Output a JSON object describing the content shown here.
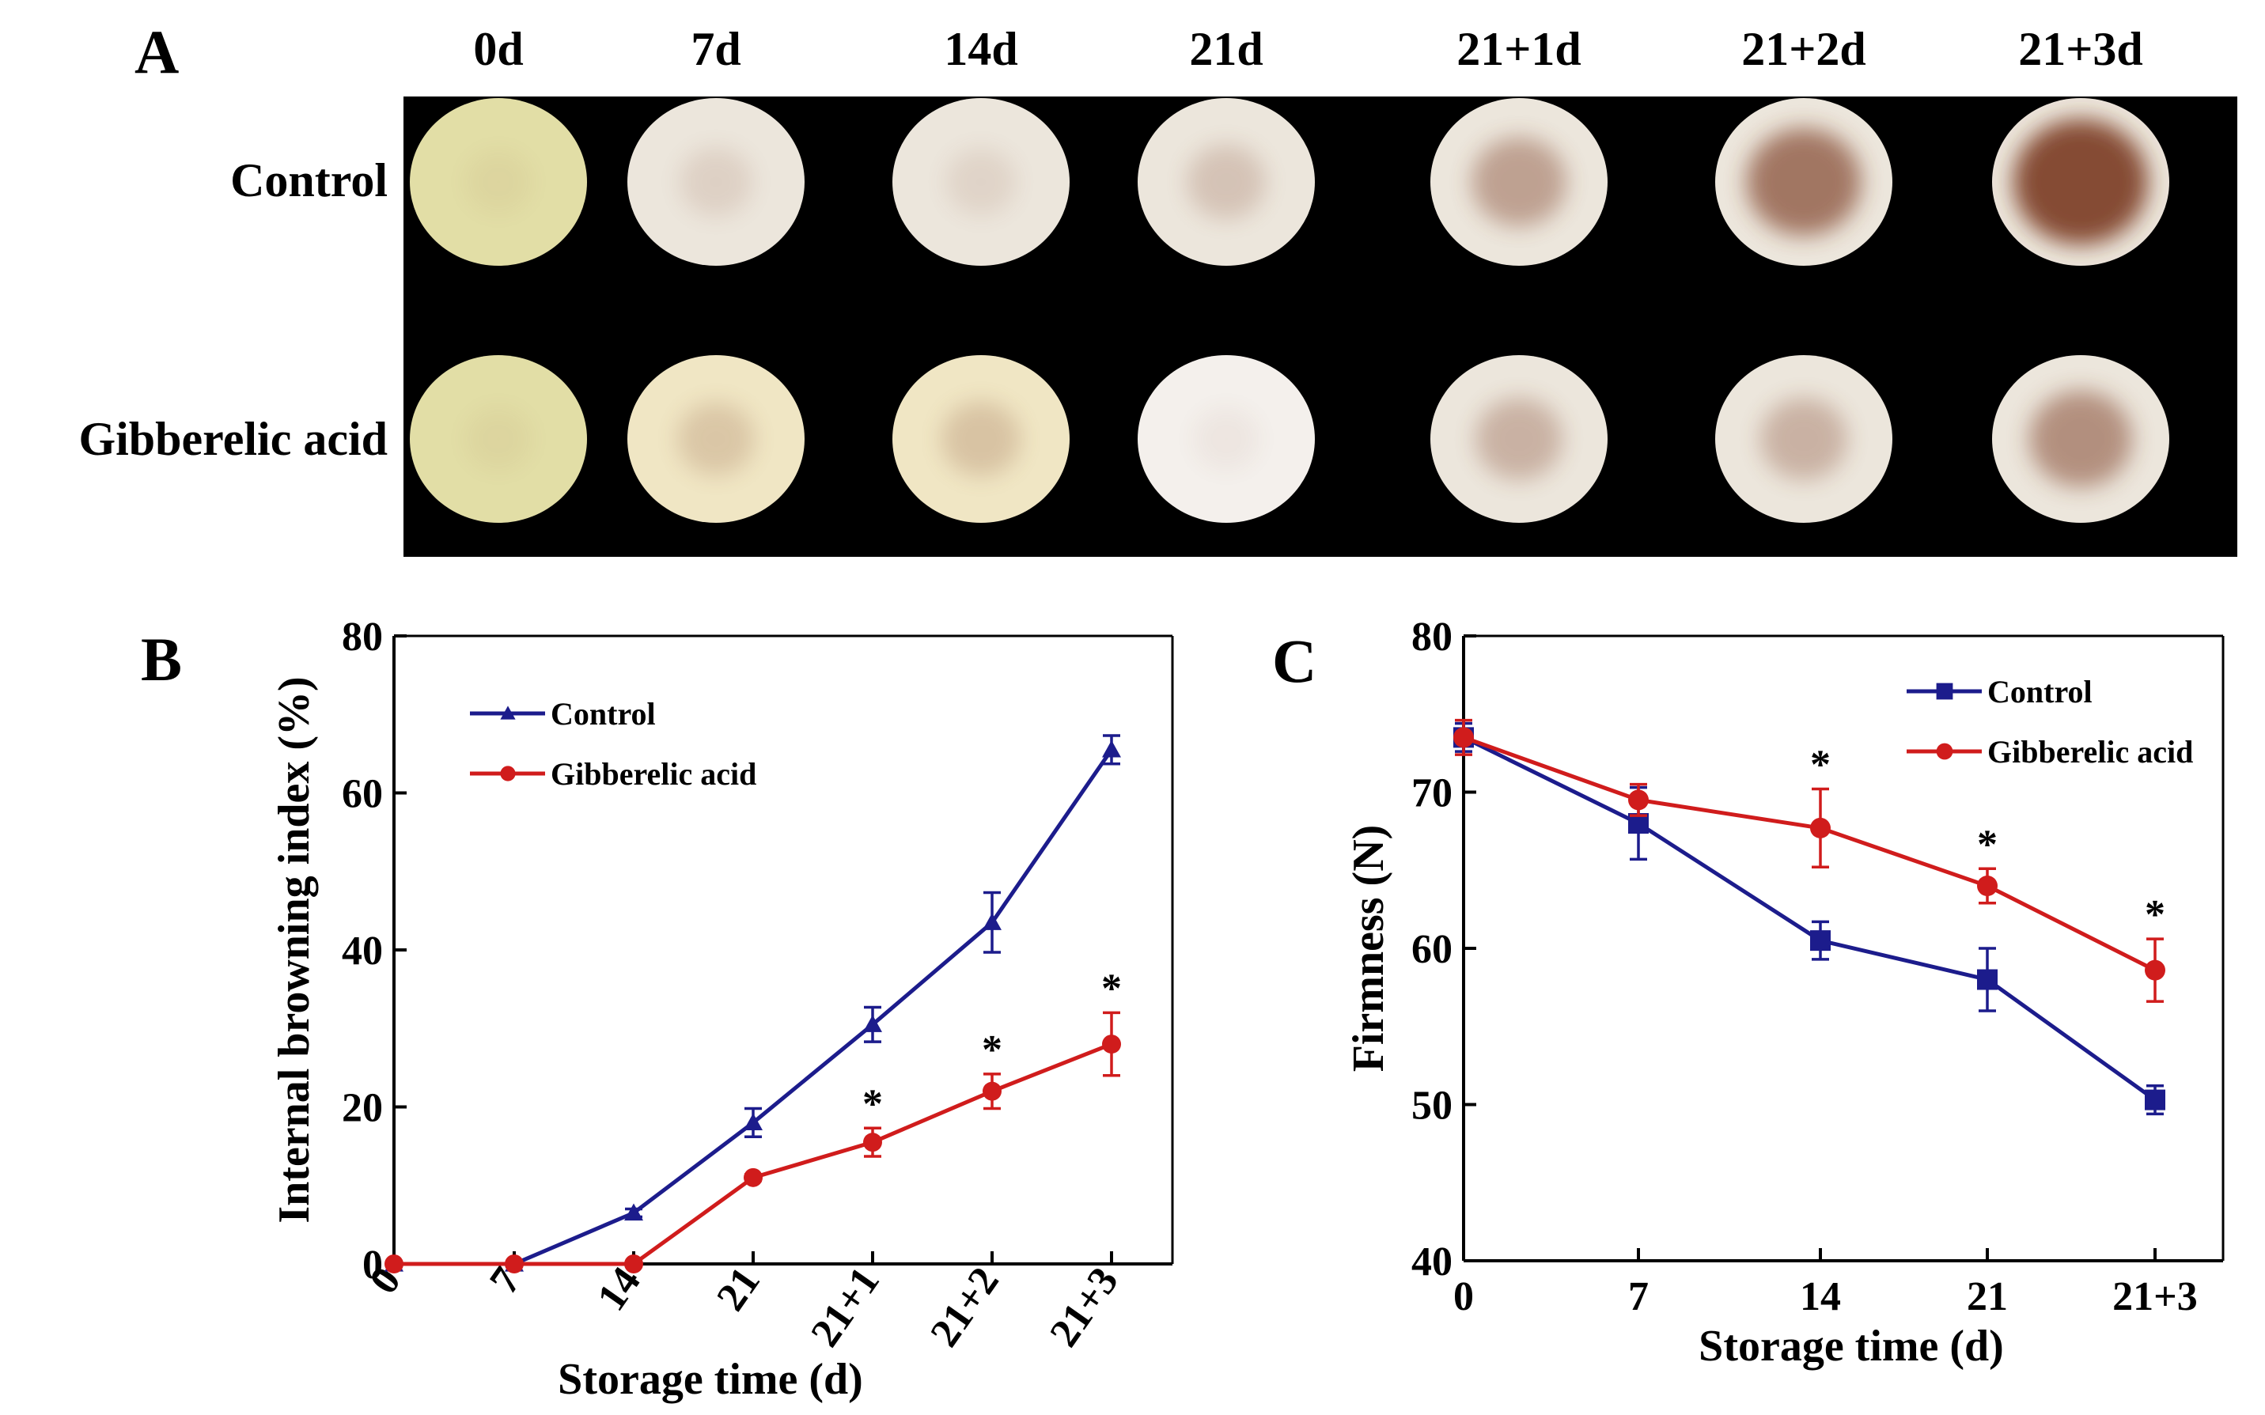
{
  "panel_a": {
    "letter": "A",
    "columns": [
      "0d",
      "7d",
      "14d",
      "21d",
      "21+1d",
      "21+2d",
      "21+3d"
    ],
    "rows": [
      {
        "label": "Control",
        "browning": [
          0.05,
          0.12,
          0.1,
          0.2,
          0.4,
          0.65,
          0.9
        ]
      },
      {
        "label": "Gibberelic acid",
        "browning": [
          0.05,
          0.18,
          0.2,
          0.05,
          0.3,
          0.3,
          0.5
        ]
      }
    ]
  },
  "chart_data": [
    {
      "panel": "B",
      "type": "line",
      "xlabel": "Storage time (d)",
      "ylabel": "Internal browning index (%)",
      "categories": [
        "0",
        "7",
        "14",
        "21",
        "21+1",
        "21+2",
        "21+3"
      ],
      "ylim": [
        0,
        80
      ],
      "yticks": [
        0,
        20,
        40,
        60,
        80
      ],
      "legend": "top-left",
      "series": [
        {
          "name": "Control",
          "color": "#1c1c8c",
          "marker": "triangle",
          "values": [
            0,
            0,
            6.5,
            18,
            30.5,
            43.5,
            65.5
          ],
          "errors": [
            0,
            0,
            0.5,
            1.8,
            2.2,
            3.8,
            1.8
          ]
        },
        {
          "name": "Gibberelic acid",
          "color": "#d01c1c",
          "marker": "circle",
          "values": [
            0,
            0,
            0,
            11,
            15.5,
            22,
            28
          ],
          "errors": [
            0,
            0,
            0,
            0.4,
            1.8,
            2.2,
            4
          ]
        }
      ],
      "significance": [
        {
          "category": "21+1",
          "label": "*"
        },
        {
          "category": "21+2",
          "label": "*"
        },
        {
          "category": "21+3",
          "label": "*"
        }
      ]
    },
    {
      "panel": "C",
      "type": "line",
      "xlabel": "Storage time (d)",
      "ylabel": "Firmness (N)",
      "categories": [
        "0",
        "7",
        "14",
        "21",
        "21+3"
      ],
      "ylim": [
        40,
        80
      ],
      "yticks": [
        40,
        50,
        60,
        70,
        80
      ],
      "legend": "top-right",
      "series": [
        {
          "name": "Control",
          "color": "#1c1c8c",
          "marker": "square",
          "values": [
            73.5,
            68,
            60.5,
            58,
            50.3
          ],
          "errors": [
            0.9,
            2.3,
            1.2,
            2,
            0.9
          ]
        },
        {
          "name": "Gibberelic acid",
          "color": "#d01c1c",
          "marker": "circle",
          "values": [
            73.5,
            69.5,
            67.7,
            64,
            58.6
          ],
          "errors": [
            1.1,
            1,
            2.5,
            1.1,
            2
          ]
        }
      ],
      "significance": [
        {
          "category": "14",
          "label": "*"
        },
        {
          "category": "21",
          "label": "*"
        },
        {
          "category": "21+3",
          "label": "*"
        }
      ]
    }
  ]
}
